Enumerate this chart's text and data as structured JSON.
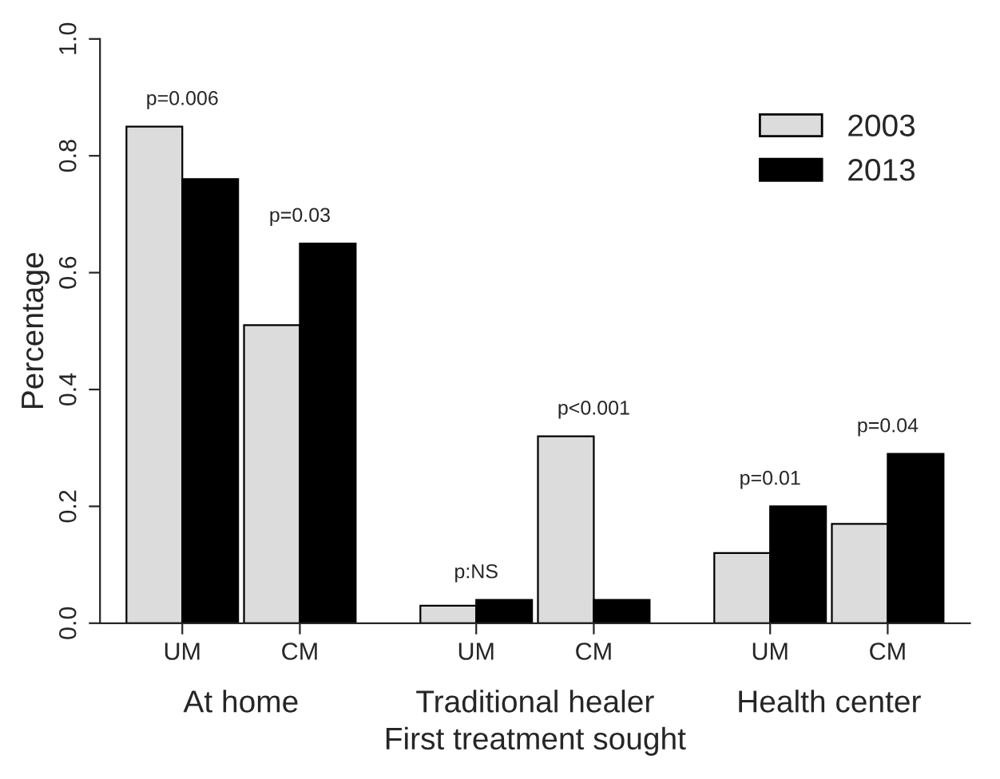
{
  "chart_data": {
    "type": "bar",
    "xlabel": "First treatment sought",
    "ylabel": "Percentage",
    "categories": [
      "UM",
      "CM",
      "UM",
      "CM",
      "UM",
      "CM"
    ],
    "series": [
      {
        "name": "2003",
        "color": "#dcdcdc",
        "values": [
          0.85,
          0.51,
          0.03,
          0.32,
          0.12,
          0.17
        ]
      },
      {
        "name": "2013",
        "color": "#000000",
        "values": [
          0.76,
          0.65,
          0.04,
          0.04,
          0.2,
          0.29
        ]
      }
    ],
    "ylim": [
      0,
      1.0
    ],
    "yticks": [
      {
        "value": 0,
        "label": "0.0"
      },
      0.2,
      0.4,
      0.6,
      0.8,
      {
        "value": 1,
        "label": "1.0"
      }
    ],
    "annotations": [
      "At home",
      "Traditional healer",
      "Health center",
      "p=0.006",
      "p=0.03",
      "p:NS",
      "p<0.001",
      "p=0.01",
      "p=0.04"
    ],
    "grid": false,
    "legend": "top right"
  }
}
